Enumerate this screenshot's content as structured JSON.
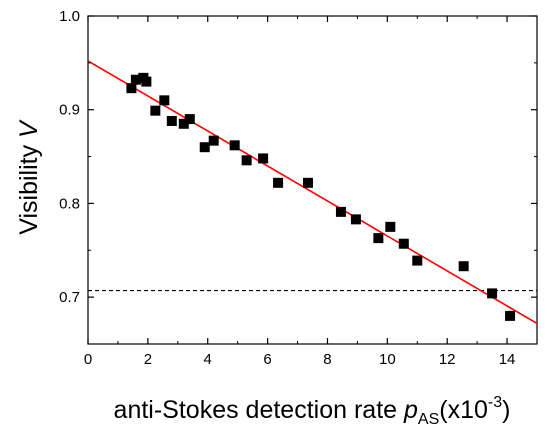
{
  "chart_data": {
    "type": "scatter",
    "title": "",
    "xlabel": {
      "main": "anti-Stokes detection rate ",
      "symbol": "p",
      "subscript": "AS",
      "unit_prefix": "(x10",
      "unit_exponent": "-3",
      "unit_suffix": ")"
    },
    "ylabel": {
      "main": "Visibility ",
      "symbol": "V"
    },
    "xlim": [
      0,
      15
    ],
    "ylim": [
      0.65,
      1.0
    ],
    "xticks": [
      0,
      2,
      4,
      6,
      8,
      10,
      12,
      14
    ],
    "xtick_labels": [
      "0",
      "2",
      "4",
      "6",
      "8",
      "10",
      "12",
      "14"
    ],
    "yticks": [
      0.7,
      0.8,
      0.9,
      1.0
    ],
    "ytick_labels": [
      "0.7",
      "0.8",
      "0.9",
      "1.0"
    ],
    "grid": false,
    "series": [
      {
        "marker": "square",
        "color": "#000000",
        "x": [
          1.45,
          1.6,
          1.85,
          1.95,
          2.25,
          2.55,
          2.8,
          3.2,
          3.4,
          3.9,
          4.2,
          4.9,
          5.3,
          5.85,
          6.35,
          7.35,
          8.45,
          8.95,
          9.7,
          10.1,
          10.55,
          11.0,
          12.55,
          13.5,
          14.1
        ],
        "y": [
          0.923,
          0.932,
          0.934,
          0.93,
          0.899,
          0.91,
          0.888,
          0.885,
          0.89,
          0.86,
          0.867,
          0.862,
          0.846,
          0.848,
          0.822,
          0.822,
          0.791,
          0.783,
          0.763,
          0.775,
          0.757,
          0.739,
          0.733,
          0.704,
          0.68
        ]
      }
    ],
    "fit_line": {
      "color": "#ff0000",
      "intercept": 0.952,
      "slope": -0.01867
    },
    "reference_line": {
      "y": 0.707,
      "style": "dashed",
      "color": "#000000"
    }
  }
}
